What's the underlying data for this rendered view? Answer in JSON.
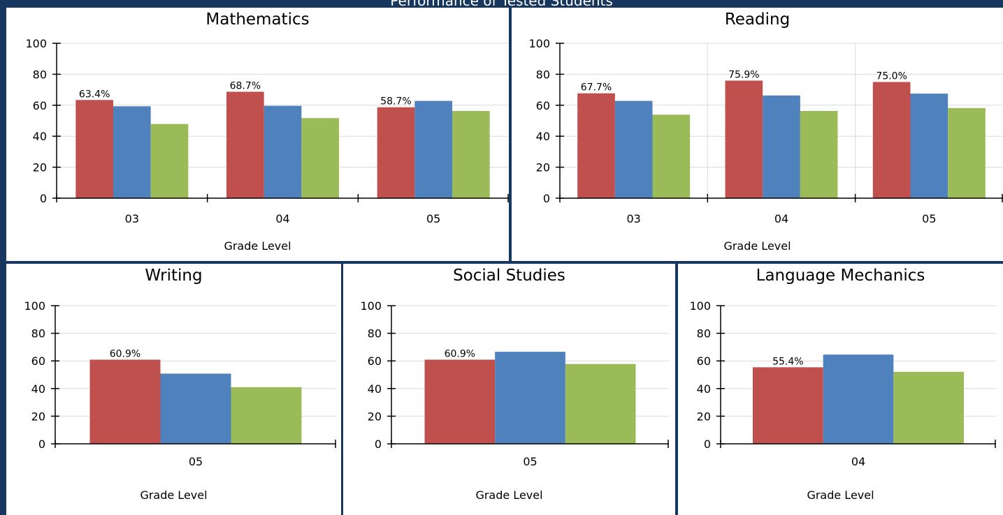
{
  "page": {
    "title": "Performance of Tested Students"
  },
  "colors": {
    "series1": "#c0504d",
    "series2": "#4f81bd",
    "series3": "#9bbb59",
    "grid": "#d9d9d9"
  },
  "chart_data": [
    {
      "type": "bar",
      "title": "Mathematics",
      "xlabel": "Grade Level",
      "categories": [
        "03",
        "04",
        "05"
      ],
      "series": [
        {
          "values": [
            63.4,
            68.7,
            58.7
          ]
        },
        {
          "values": [
            59.3,
            59.6,
            62.8
          ]
        },
        {
          "values": [
            47.9,
            51.7,
            56.3
          ]
        }
      ],
      "data_labels": [
        "63.4%",
        "68.7%",
        "58.7%"
      ],
      "ylim": [
        0,
        100
      ],
      "yticks": [
        0,
        20,
        40,
        60,
        80,
        100
      ],
      "grid": true,
      "vertical_grid": false
    },
    {
      "type": "bar",
      "title": "Reading",
      "xlabel": "Grade Level",
      "categories": [
        "03",
        "04",
        "05"
      ],
      "series": [
        {
          "values": [
            67.7,
            75.9,
            75.0
          ]
        },
        {
          "values": [
            62.8,
            66.3,
            67.5
          ]
        },
        {
          "values": [
            53.9,
            56.3,
            58.2
          ]
        }
      ],
      "data_labels": [
        "67.7%",
        "75.9%",
        "75.0%"
      ],
      "ylim": [
        0,
        100
      ],
      "yticks": [
        0,
        20,
        40,
        60,
        80,
        100
      ],
      "grid": true,
      "vertical_grid": true
    },
    {
      "type": "bar",
      "title": "Writing",
      "xlabel": "Grade Level",
      "categories": [
        "05"
      ],
      "series": [
        {
          "values": [
            60.9
          ]
        },
        {
          "values": [
            50.8
          ]
        },
        {
          "values": [
            41.0
          ]
        }
      ],
      "data_labels": [
        "60.9%"
      ],
      "ylim": [
        0,
        100
      ],
      "yticks": [
        0,
        20,
        40,
        60,
        80,
        100
      ],
      "grid": true,
      "vertical_grid": false
    },
    {
      "type": "bar",
      "title": "Social Studies",
      "xlabel": "Grade Level",
      "categories": [
        "05"
      ],
      "series": [
        {
          "values": [
            60.9
          ]
        },
        {
          "values": [
            66.6
          ]
        },
        {
          "values": [
            57.8
          ]
        }
      ],
      "data_labels": [
        "60.9%"
      ],
      "ylim": [
        0,
        100
      ],
      "yticks": [
        0,
        20,
        40,
        60,
        80,
        100
      ],
      "grid": true,
      "vertical_grid": false
    },
    {
      "type": "bar",
      "title": "Language Mechanics",
      "xlabel": "Grade Level",
      "categories": [
        "04"
      ],
      "series": [
        {
          "values": [
            55.4
          ]
        },
        {
          "values": [
            64.6
          ]
        },
        {
          "values": [
            52.1
          ]
        }
      ],
      "data_labels": [
        "55.4%"
      ],
      "ylim": [
        0,
        100
      ],
      "yticks": [
        0,
        20,
        40,
        60,
        80,
        100
      ],
      "grid": true,
      "vertical_grid": false
    }
  ]
}
